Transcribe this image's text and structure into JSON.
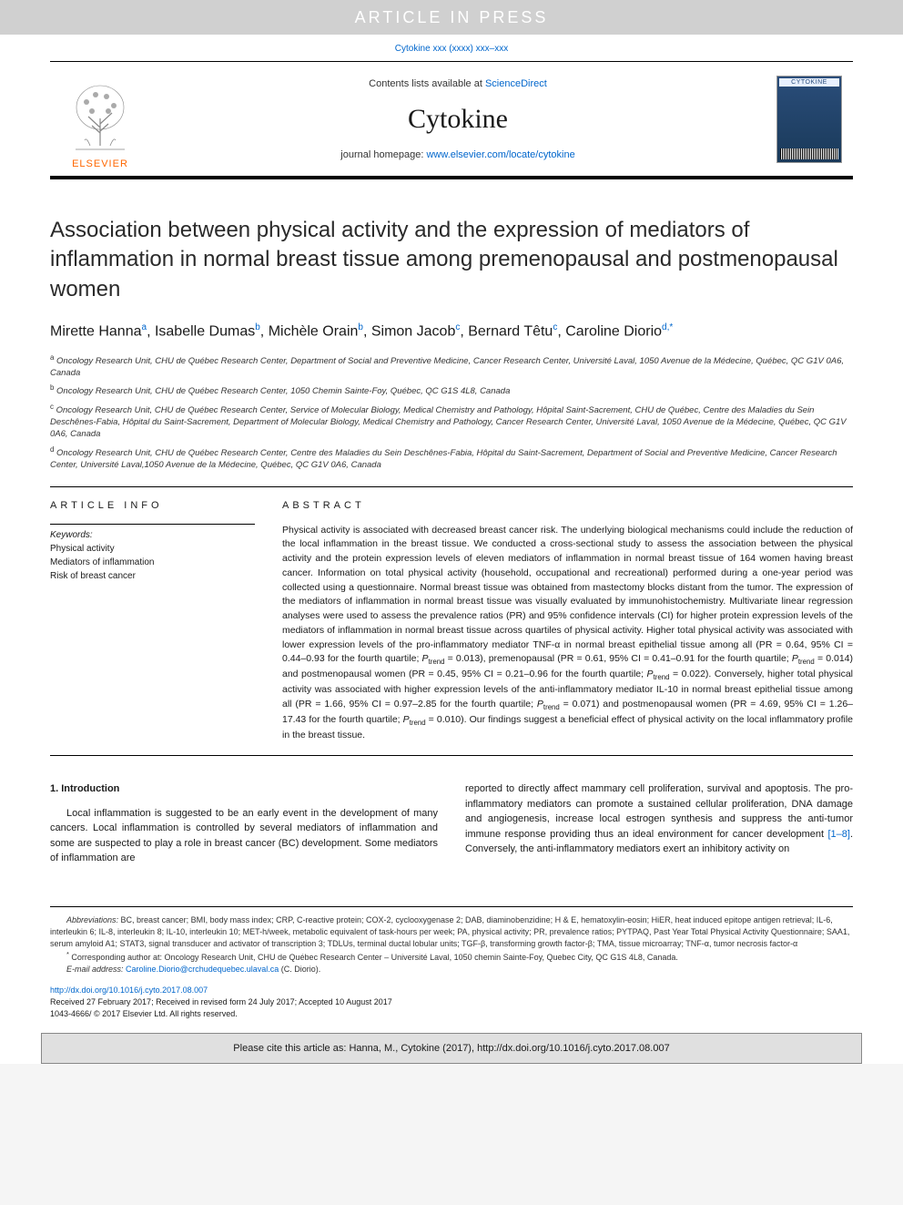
{
  "banner": {
    "text": "ARTICLE IN PRESS"
  },
  "citation_top": "Cytokine xxx (xxxx) xxx–xxx",
  "masthead": {
    "contents_prefix": "Contents lists available at ",
    "contents_link": "ScienceDirect",
    "journal_name": "Cytokine",
    "homepage_prefix": "journal homepage: ",
    "homepage_link": "www.elsevier.com/locate/cytokine",
    "publisher_name": "ELSEVIER",
    "cover_label": "CYTOKINE",
    "colors": {
      "elsevier_orange": "#ff6600",
      "link_blue": "#0066cc",
      "cover_bg_top": "#2a4d7a",
      "cover_bg_bottom": "#1a3a5a",
      "banner_bg": "#d0d0d0",
      "banner_text": "#ffffff"
    }
  },
  "title": "Association between physical activity and the expression of mediators of inflammation in normal breast tissue among premenopausal and postmenopausal women",
  "authors": [
    {
      "name": "Mirette Hanna",
      "affil": "a"
    },
    {
      "name": "Isabelle Dumas",
      "affil": "b"
    },
    {
      "name": "Michèle Orain",
      "affil": "b"
    },
    {
      "name": "Simon Jacob",
      "affil": "c"
    },
    {
      "name": "Bernard Têtu",
      "affil": "c"
    },
    {
      "name": "Caroline Diorio",
      "affil": "d,*"
    }
  ],
  "affiliations": {
    "a": "Oncology Research Unit, CHU de Québec Research Center, Department of Social and Preventive Medicine, Cancer Research Center, Université Laval, 1050 Avenue de la Médecine, Québec, QC G1V 0A6, Canada",
    "b": "Oncology Research Unit, CHU de Québec Research Center, 1050 Chemin Sainte-Foy, Québec, QC G1S 4L8, Canada",
    "c": "Oncology Research Unit, CHU de Québec Research Center, Service of Molecular Biology, Medical Chemistry and Pathology, Hôpital Saint-Sacrement, CHU de Québec, Centre des Maladies du Sein Deschênes-Fabia, Hôpital du Saint-Sacrement, Department of Molecular Biology, Medical Chemistry and Pathology, Cancer Research Center, Université Laval, 1050 Avenue de la Médecine, Québec, QC G1V 0A6, Canada",
    "d": "Oncology Research Unit, CHU de Québec Research Center, Centre des Maladies du Sein Deschênes-Fabia, Hôpital du Saint-Sacrement, Department of Social and Preventive Medicine, Cancer Research Center, Université Laval,1050 Avenue de la Médecine, Québec, QC G1V 0A6, Canada"
  },
  "article_info": {
    "heading": "ARTICLE INFO",
    "keywords_label": "Keywords:",
    "keywords": [
      "Physical activity",
      "Mediators of inflammation",
      "Risk of breast cancer"
    ]
  },
  "abstract": {
    "heading": "ABSTRACT",
    "text_html": "Physical activity is associated with decreased breast cancer risk. The underlying biological mechanisms could include the reduction of the local inflammation in the breast tissue. We conducted a cross-sectional study to assess the association between the physical activity and the protein expression levels of eleven mediators of inflammation in normal breast tissue of 164 women having breast cancer. Information on total physical activity (household, occupational and recreational) performed during a one-year period was collected using a questionnaire. Normal breast tissue was obtained from mastectomy blocks distant from the tumor. The expression of the mediators of inflammation in normal breast tissue was visually evaluated by immunohistochemistry. Multivariate linear regression analyses were used to assess the prevalence ratios (PR) and 95% confidence intervals (CI) for higher protein expression levels of the mediators of inflammation in normal breast tissue across quartiles of physical activity. Higher total physical activity was associated with lower expression levels of the pro-inflammatory mediator TNF-α in normal breast epithelial tissue among all (PR = 0.64, 95% CI = 0.44–0.93 for the fourth quartile; <em>P</em><sub>trend</sub> = 0.013), premenopausal (PR = 0.61, 95% CI = 0.41–0.91 for the fourth quartile; <em>P</em><sub>trend</sub> = 0.014) and postmenopausal women (PR = 0.45, 95% CI = 0.21–0.96 for the fourth quartile; <em>P</em><sub>trend</sub> = 0.022). Conversely, higher total physical activity was associated with higher expression levels of the anti-inflammatory mediator IL-10 in normal breast epithelial tissue among all (PR = 1.66, 95% CI = 0.97–2.85 for the fourth quartile; <em>P</em><sub>trend</sub> = 0.071) and postmenopausal women (PR = 4.69, 95% CI = 1.26–17.43 for the fourth quartile; <em>P</em><sub>trend</sub> = 0.010). Our findings suggest a beneficial effect of physical activity on the local inflammatory profile in the breast tissue."
  },
  "introduction": {
    "heading": "1. Introduction",
    "col1": "Local inflammation is suggested to be an early event in the development of many cancers. Local inflammation is controlled by several mediators of inflammation and some are suspected to play a role in breast cancer (BC) development. Some mediators of inflammation are",
    "col2_html": "reported to directly affect mammary cell proliferation, survival and apoptosis. The pro-inflammatory mediators can promote a sustained cellular proliferation, DNA damage and angiogenesis, increase local estrogen synthesis and suppress the anti-tumor immune response providing thus an ideal environment for cancer development <span class=\"refs-link\">[1–8]</span>. Conversely, the anti-inflammatory mediators exert an inhibitory activity on"
  },
  "footnotes": {
    "abbrev_label": "Abbreviations:",
    "abbreviations": " BC, breast cancer; BMI, body mass index; CRP, C-reactive protein; COX-2, cyclooxygenase 2; DAB, diaminobenzidine; H & E, hematoxylin-eosin; HiER, heat induced epitope antigen retrieval; IL-6, interleukin 6; IL-8, interleukin 8; IL-10, interleukin 10; MET-h/week, metabolic equivalent of task-hours per week; PA, physical activity; PR, prevalence ratios; PYTPAQ, Past Year Total Physical Activity Questionnaire; SAA1, serum amyloid A1; STAT3, signal transducer and activator of transcription 3; TDLUs, terminal ductal lobular units; TGF-β, transforming growth factor-β; TMA, tissue microarray; TNF-α, tumor necrosis factor-α",
    "corr_marker": "*",
    "corresponding": " Corresponding author at: Oncology Research Unit, CHU de Québec Research Center – Université Laval, 1050 chemin Sainte-Foy, Quebec City, QC G1S 4L8, Canada.",
    "email_label": "E-mail address:",
    "email": "Caroline.Diorio@crchudequebec.ulaval.ca",
    "email_who": " (C. Diorio)."
  },
  "doi": {
    "url": "http://dx.doi.org/10.1016/j.cyto.2017.08.007",
    "received": "Received 27 February 2017; Received in revised form 24 July 2017; Accepted 10 August 2017",
    "copyright": "1043-4666/ © 2017 Elsevier Ltd. All rights reserved."
  },
  "cite_box": "Please cite this article as: Hanna, M., Cytokine (2017), http://dx.doi.org/10.1016/j.cyto.2017.08.007"
}
